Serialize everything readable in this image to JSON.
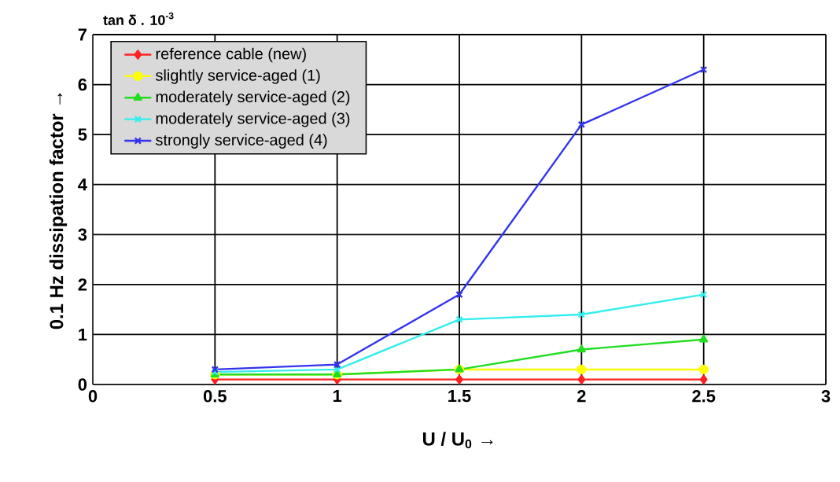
{
  "chart_data": {
    "type": "line",
    "subtitle": "tan δ . 10$^{-3}$",
    "xlabel": "U / U$_{0}$ →",
    "ylabel": "0.1 Hz dissipation factor →",
    "x": [
      0.5,
      1,
      1.5,
      2,
      2.5
    ],
    "series": [
      {
        "name": "reference cable (new)",
        "color": "#ff2020",
        "marker": "diamond",
        "values": [
          0.1,
          0.1,
          0.1,
          0.1,
          0.1
        ]
      },
      {
        "name": "slightly service-aged (1)",
        "color": "#ffff00",
        "marker": "circle",
        "values": [
          0.2,
          0.2,
          0.3,
          0.3,
          0.3
        ]
      },
      {
        "name": "moderately service-aged (2)",
        "color": "#22dd22",
        "marker": "triangle",
        "values": [
          0.2,
          0.2,
          0.3,
          0.7,
          0.9
        ]
      },
      {
        "name": "moderately service-aged (3)",
        "color": "#33eeee",
        "marker": "cross",
        "values": [
          0.25,
          0.3,
          1.3,
          1.4,
          1.8
        ]
      },
      {
        "name": "strongly service-aged (4)",
        "color": "#3333ee",
        "marker": "cross",
        "values": [
          0.3,
          0.4,
          1.8,
          5.2,
          6.3
        ]
      }
    ],
    "xlim": [
      0,
      3
    ],
    "xticks": [
      0,
      0.5,
      1,
      1.5,
      2,
      2.5,
      3
    ],
    "ylim": [
      0,
      7
    ],
    "yticks": [
      0,
      1,
      2,
      3,
      4,
      5,
      6,
      7
    ],
    "grid": true,
    "legend": "top left",
    "line_style": "solid"
  }
}
